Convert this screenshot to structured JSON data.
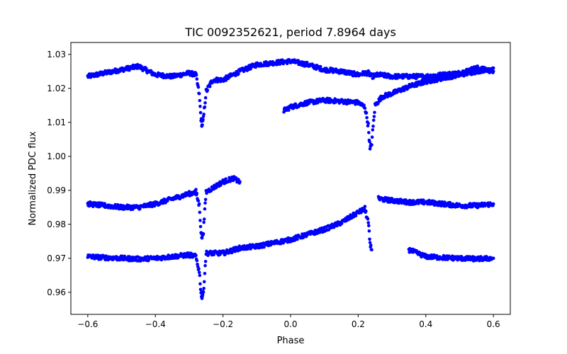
{
  "chart_data": {
    "type": "scatter",
    "title": "TIC 0092352621, period 7.8964 days",
    "xlabel": "Phase",
    "ylabel": "Normalized PDC flux",
    "xlim": [
      -0.65,
      0.65
    ],
    "ylim": [
      0.9535,
      1.0335
    ],
    "xticks": [
      -0.6,
      -0.4,
      -0.2,
      0.0,
      0.2,
      0.4,
      0.6
    ],
    "xtick_labels": [
      "−0.6",
      "−0.4",
      "−0.2",
      "0.0",
      "0.2",
      "0.4",
      "0.6"
    ],
    "yticks": [
      0.96,
      0.97,
      0.98,
      0.99,
      1.0,
      1.01,
      1.02,
      1.03
    ],
    "ytick_labels": [
      "0.96",
      "0.97",
      "0.98",
      "0.99",
      "1.00",
      "1.01",
      "1.02",
      "1.03"
    ],
    "grid": false,
    "marker_color": "#0000ff",
    "series": [
      {
        "x": [
          -0.6,
          -0.55,
          -0.5,
          -0.45,
          -0.4,
          -0.35,
          -0.3,
          -0.28,
          -0.27,
          -0.265,
          -0.262,
          -0.258,
          -0.25,
          -0.23,
          -0.2,
          -0.15,
          -0.1,
          -0.05,
          0.0,
          0.05,
          0.1,
          0.15,
          0.2,
          0.22,
          0.23,
          0.235,
          0.24,
          0.26,
          0.3,
          0.35,
          0.4,
          0.45,
          0.5,
          0.55,
          0.6
        ],
        "y": [
          1.0235,
          1.0245,
          1.0255,
          1.0265,
          1.024,
          1.0235,
          1.0245,
          1.024,
          1.018,
          1.011,
          1.009,
          1.011,
          1.019,
          1.0225,
          1.0225,
          1.025,
          1.027,
          1.0275,
          1.028,
          1.027,
          1.0255,
          1.025,
          1.024,
          1.0245,
          1.0245,
          1.024,
          1.0235,
          1.024,
          1.0235,
          1.0235,
          1.0235,
          1.024,
          1.0245,
          1.026,
          1.025
        ]
      },
      {
        "x": [
          -0.02,
          0.0,
          0.05,
          0.1,
          0.15,
          0.2,
          0.22,
          0.23,
          0.235,
          0.24,
          0.25,
          0.27,
          0.3,
          0.35,
          0.4,
          0.45,
          0.5,
          0.55,
          0.6
        ],
        "y": [
          1.0135,
          1.0145,
          1.0158,
          1.0165,
          1.0162,
          1.0158,
          1.0145,
          1.009,
          1.002,
          1.004,
          1.015,
          1.0175,
          1.0185,
          1.0205,
          1.022,
          1.023,
          1.024,
          1.025,
          1.026
        ]
      },
      {
        "x": [
          -0.6,
          -0.55,
          -0.5,
          -0.45,
          -0.4,
          -0.35,
          -0.3,
          -0.28,
          -0.27,
          -0.265,
          -0.262,
          -0.258,
          -0.25,
          -0.2,
          -0.17,
          -0.15
        ],
        "y": [
          0.986,
          0.9855,
          0.985,
          0.985,
          0.986,
          0.9875,
          0.989,
          0.9895,
          0.9855,
          0.978,
          0.976,
          0.978,
          0.9895,
          0.9925,
          0.9935,
          0.9925
        ]
      },
      {
        "x": [
          0.26,
          0.3,
          0.35,
          0.4,
          0.45,
          0.5,
          0.55,
          0.6
        ],
        "y": [
          0.9875,
          0.987,
          0.9865,
          0.9865,
          0.986,
          0.9855,
          0.9855,
          0.986
        ]
      },
      {
        "x": [
          -0.6,
          -0.55,
          -0.5,
          -0.45,
          -0.4,
          -0.35,
          -0.3,
          -0.28,
          -0.27,
          -0.265,
          -0.262,
          -0.258,
          -0.25,
          -0.2,
          -0.15,
          -0.1,
          -0.05,
          0.0,
          0.05,
          0.1,
          0.15,
          0.2,
          0.22,
          0.23,
          0.235,
          0.24
        ],
        "y": [
          0.9705,
          0.9702,
          0.97,
          0.9698,
          0.97,
          0.9705,
          0.971,
          0.9705,
          0.966,
          0.96,
          0.9585,
          0.96,
          0.9715,
          0.9715,
          0.973,
          0.9735,
          0.9745,
          0.9755,
          0.977,
          0.9785,
          0.9805,
          0.9835,
          0.9845,
          0.9805,
          0.974,
          0.9725
        ]
      },
      {
        "x": [
          0.35,
          0.4,
          0.45,
          0.5,
          0.55,
          0.6
        ],
        "y": [
          0.9725,
          0.9705,
          0.9702,
          0.97,
          0.9698,
          0.97
        ]
      }
    ]
  }
}
